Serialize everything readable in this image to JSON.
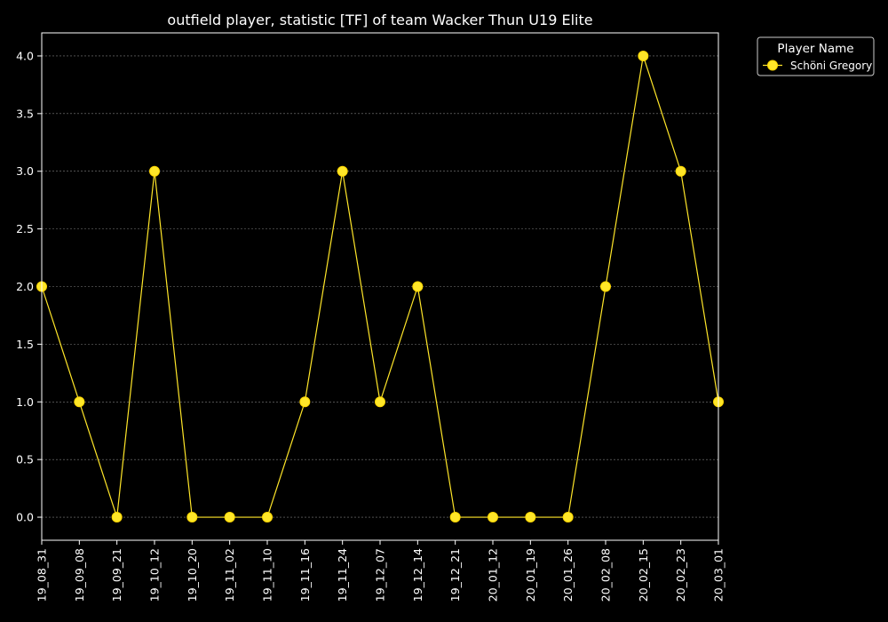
{
  "chart_data": {
    "type": "line",
    "title": "outfield player, statistic [TF] of team Wacker Thun U19 Elite",
    "xlabel": "",
    "ylabel": "",
    "categories": [
      "19_08_31",
      "19_09_08",
      "19_09_21",
      "19_10_12",
      "19_10_20",
      "19_11_02",
      "19_11_10",
      "19_11_16",
      "19_11_24",
      "19_12_07",
      "19_12_14",
      "19_12_21",
      "20_01_12",
      "20_01_19",
      "20_01_26",
      "20_02_08",
      "20_02_15",
      "20_02_23",
      "20_03_01"
    ],
    "series": [
      {
        "name": "Schöni Gregory",
        "values": [
          2,
          1,
          0,
          3,
          0,
          0,
          0,
          1,
          3,
          1,
          2,
          0,
          0,
          0,
          0,
          2,
          4,
          3,
          1
        ]
      }
    ],
    "ylim": [
      -0.2,
      4.2
    ],
    "yticks": [
      0.0,
      0.5,
      1.0,
      1.5,
      2.0,
      2.5,
      3.0,
      3.5,
      4.0
    ],
    "ytick_labels": [
      "0.0",
      "0.5",
      "1.0",
      "1.5",
      "2.0",
      "2.5",
      "3.0",
      "3.5",
      "4.0"
    ],
    "grid": true,
    "legend": {
      "title": "Player Name",
      "placement": "outside-top-right"
    },
    "colors": {
      "background": "#000000",
      "axis": "#ffffff",
      "grid": "#808080",
      "series": "#ffe629",
      "marker_edge": "#ffd700"
    }
  }
}
